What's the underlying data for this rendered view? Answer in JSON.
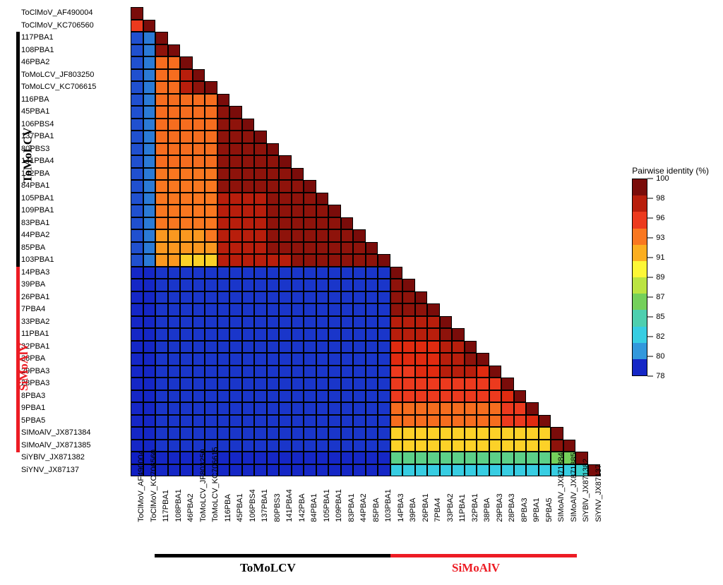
{
  "type": "heatmap",
  "cell_size": 17.5,
  "background_color": "#ffffff",
  "cell_border_color": "#000000",
  "label_fontsize": 11,
  "group_label_fontsize": 17,
  "labels": [
    "ToClMoV_AF490004",
    "ToClMoV_KC706560",
    "117PBA1",
    "108PBA1",
    "46PBA2",
    "ToMoLCV_JF803250",
    "ToMoLCV_KC706615",
    "116PBA",
    "45PBA1",
    "106PBS4",
    "137PBA1",
    "80PBS3",
    "141PBA4",
    "142PBA",
    "84PBA1",
    "105PBA1",
    "109PBA1",
    "83PBA1",
    "44PBA2",
    "85PBA",
    "103PBA1",
    "14PBA3",
    "39PBA",
    "26PBA1",
    "7PBA4",
    "33PBA2",
    "11PBA1",
    "32PBA1",
    "38PBA",
    "29PBA3",
    "28PBA3",
    "8PBA3",
    "9PBA1",
    "5PBA5",
    "SIMoAlV_JX871384",
    "SIMoAlV_JX871385",
    "SiYBlV_JX871382",
    "SiYNV_JX87137"
  ],
  "groups": [
    {
      "label": "ToMoLCV",
      "color": "#000000",
      "start": 2,
      "end": 20
    },
    {
      "label": "SiMoAlV",
      "color": "#ed1c24",
      "start": 21,
      "end": 35
    }
  ],
  "legend": {
    "title": "Pairwise identity (%)",
    "ticks": [
      100,
      98,
      96,
      93,
      91,
      89,
      87,
      85,
      82,
      80,
      78
    ],
    "colors": [
      "#7a0c0a",
      "#b81e0c",
      "#ec3a1e",
      "#f97720",
      "#fbae20",
      "#fdf736",
      "#bbe441",
      "#74d05b",
      "#4ecfaf",
      "#37cde2",
      "#3298dc",
      "#1527c6"
    ]
  },
  "matrix": [
    [
      100
    ],
    [
      96,
      100
    ],
    [
      78,
      79,
      100
    ],
    [
      78,
      79,
      99,
      100
    ],
    [
      78,
      79,
      95,
      95,
      100
    ],
    [
      78,
      79,
      95,
      95,
      98,
      100
    ],
    [
      78,
      79,
      95,
      95,
      98,
      99,
      100
    ],
    [
      78,
      79,
      95,
      95,
      95,
      95,
      95,
      100
    ],
    [
      78,
      79,
      95,
      95,
      95,
      95,
      95,
      99,
      100
    ],
    [
      78,
      79,
      95,
      95,
      95,
      95,
      95,
      99,
      99,
      100
    ],
    [
      78,
      79,
      95,
      95,
      95,
      95,
      95,
      99,
      99,
      99,
      100
    ],
    [
      78,
      79,
      95,
      95,
      95,
      95,
      95,
      99,
      99,
      99,
      99,
      100
    ],
    [
      78,
      79,
      95,
      95,
      95,
      95,
      95,
      99,
      99,
      99,
      99,
      99,
      100
    ],
    [
      78,
      79,
      94,
      94,
      94,
      94,
      94,
      99,
      99,
      99,
      99,
      99,
      99,
      100
    ],
    [
      78,
      79,
      94,
      94,
      94,
      94,
      94,
      99,
      99,
      99,
      99,
      99,
      99,
      99,
      100
    ],
    [
      78,
      79,
      94,
      94,
      94,
      94,
      94,
      98,
      98,
      98,
      98,
      99,
      99,
      99,
      99,
      100
    ],
    [
      78,
      79,
      94,
      94,
      94,
      94,
      94,
      98,
      98,
      98,
      98,
      99,
      99,
      99,
      99,
      99,
      100
    ],
    [
      78,
      79,
      94,
      94,
      94,
      94,
      94,
      98,
      98,
      98,
      98,
      99,
      99,
      99,
      99,
      99,
      99,
      100
    ],
    [
      78,
      79,
      93,
      93,
      93,
      93,
      94,
      98,
      98,
      98,
      98,
      99,
      99,
      99,
      99,
      99,
      99,
      99,
      100
    ],
    [
      78,
      79,
      93,
      93,
      93,
      93,
      93,
      98,
      98,
      98,
      98,
      99,
      99,
      99,
      99,
      99,
      99,
      99,
      99,
      100
    ],
    [
      78,
      79,
      93,
      93,
      92,
      92,
      92,
      98,
      98,
      98,
      98,
      98,
      98,
      99,
      99,
      99,
      99,
      99,
      99,
      99,
      100
    ],
    [
      76,
      76,
      77,
      77,
      77,
      77,
      77,
      77,
      77,
      77,
      77,
      77,
      77,
      77,
      77,
      77,
      77,
      77,
      77,
      77,
      77,
      100
    ],
    [
      76,
      76,
      77,
      77,
      77,
      77,
      77,
      77,
      77,
      77,
      77,
      77,
      77,
      77,
      77,
      77,
      77,
      77,
      77,
      77,
      77,
      99,
      100
    ],
    [
      76,
      76,
      77,
      77,
      77,
      77,
      77,
      77,
      77,
      77,
      77,
      77,
      77,
      77,
      77,
      77,
      77,
      77,
      77,
      77,
      77,
      99,
      99,
      100
    ],
    [
      76,
      76,
      77,
      77,
      77,
      77,
      77,
      77,
      77,
      77,
      77,
      77,
      77,
      77,
      77,
      77,
      77,
      77,
      77,
      77,
      77,
      99,
      99,
      99,
      100
    ],
    [
      76,
      76,
      77,
      77,
      77,
      77,
      77,
      77,
      77,
      77,
      77,
      77,
      77,
      77,
      77,
      77,
      77,
      77,
      77,
      77,
      77,
      98,
      98,
      98,
      98,
      100
    ],
    [
      76,
      76,
      77,
      77,
      77,
      77,
      77,
      77,
      77,
      77,
      77,
      77,
      77,
      77,
      77,
      77,
      77,
      77,
      77,
      77,
      77,
      98,
      98,
      98,
      98,
      99,
      100
    ],
    [
      76,
      76,
      77,
      77,
      77,
      77,
      77,
      77,
      77,
      77,
      77,
      77,
      77,
      77,
      77,
      77,
      77,
      77,
      77,
      77,
      77,
      97,
      97,
      97,
      97,
      98,
      98,
      100
    ],
    [
      76,
      76,
      77,
      77,
      77,
      77,
      77,
      77,
      77,
      77,
      77,
      77,
      77,
      77,
      77,
      77,
      77,
      77,
      77,
      77,
      77,
      97,
      97,
      97,
      97,
      98,
      98,
      99,
      100
    ],
    [
      76,
      76,
      77,
      77,
      77,
      77,
      77,
      77,
      77,
      77,
      77,
      77,
      77,
      77,
      77,
      77,
      77,
      77,
      77,
      77,
      77,
      96,
      96,
      97,
      97,
      98,
      98,
      98,
      97,
      100
    ],
    [
      76,
      76,
      77,
      77,
      77,
      77,
      77,
      77,
      77,
      77,
      77,
      77,
      77,
      77,
      77,
      77,
      77,
      77,
      77,
      77,
      77,
      96,
      96,
      96,
      96,
      96,
      96,
      96,
      96,
      96,
      100
    ],
    [
      76,
      76,
      77,
      77,
      77,
      77,
      77,
      77,
      77,
      77,
      77,
      77,
      77,
      77,
      77,
      77,
      77,
      77,
      77,
      77,
      77,
      96,
      96,
      96,
      96,
      96,
      96,
      96,
      96,
      96,
      97,
      100
    ],
    [
      76,
      76,
      77,
      77,
      77,
      77,
      77,
      77,
      77,
      77,
      77,
      77,
      77,
      77,
      77,
      77,
      77,
      77,
      77,
      77,
      77,
      95,
      95,
      95,
      95,
      95,
      95,
      95,
      95,
      95,
      96,
      96,
      100
    ],
    [
      76,
      76,
      77,
      77,
      77,
      77,
      77,
      77,
      77,
      77,
      77,
      77,
      77,
      77,
      77,
      77,
      77,
      77,
      77,
      77,
      77,
      95,
      95,
      95,
      95,
      95,
      95,
      95,
      95,
      95,
      96,
      96,
      97,
      100
    ],
    [
      76,
      76,
      77,
      77,
      77,
      77,
      77,
      77,
      77,
      77,
      77,
      77,
      77,
      77,
      77,
      77,
      77,
      77,
      77,
      77,
      77,
      92,
      92,
      92,
      92,
      92,
      92,
      92,
      92,
      92,
      92,
      92,
      92,
      92,
      100
    ],
    [
      76,
      76,
      77,
      77,
      77,
      77,
      77,
      77,
      77,
      77,
      77,
      77,
      77,
      77,
      77,
      77,
      77,
      77,
      77,
      77,
      77,
      92,
      92,
      92,
      92,
      92,
      92,
      92,
      92,
      92,
      92,
      92,
      92,
      92,
      99,
      100
    ],
    [
      75,
      75,
      76,
      76,
      76,
      76,
      76,
      76,
      76,
      76,
      76,
      76,
      76,
      76,
      76,
      76,
      76,
      76,
      76,
      76,
      76,
      86,
      86,
      86,
      86,
      86,
      86,
      86,
      86,
      86,
      86,
      86,
      86,
      86,
      87,
      87,
      100
    ],
    [
      75,
      75,
      76,
      76,
      76,
      76,
      76,
      76,
      76,
      76,
      76,
      76,
      76,
      76,
      76,
      76,
      76,
      76,
      76,
      76,
      76,
      81,
      81,
      81,
      81,
      81,
      81,
      81,
      81,
      81,
      81,
      81,
      81,
      81,
      81,
      81,
      82,
      100
    ]
  ]
}
